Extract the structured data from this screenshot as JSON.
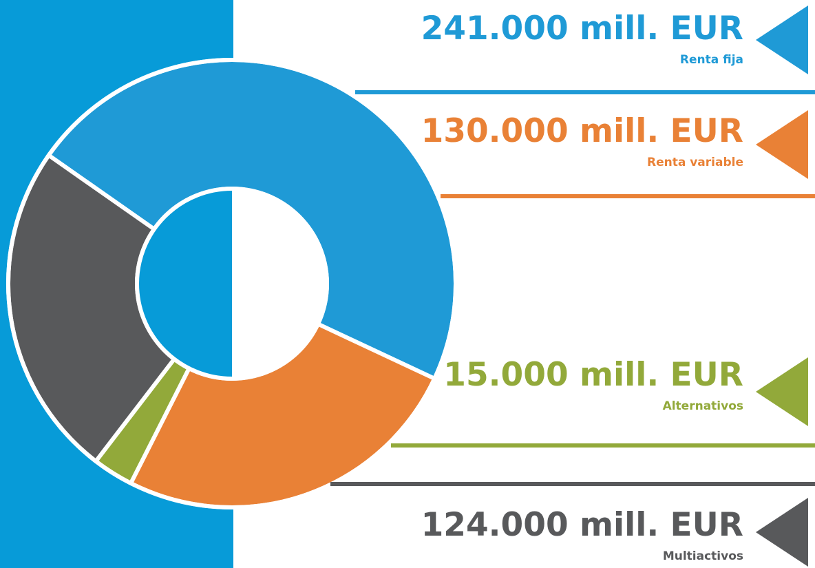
{
  "chart_data": {
    "type": "donut",
    "unit": "mill. EUR",
    "segments": [
      {
        "name": "Renta fija",
        "value": 241000,
        "amount_label": "241.000 mill. EUR",
        "color": "#1f9ad6"
      },
      {
        "name": "Renta variable",
        "value": 130000,
        "amount_label": "130.000 mill. EUR",
        "color": "#e98136"
      },
      {
        "name": "Alternativos",
        "value": 15000,
        "amount_label": "15.000 mill. EUR",
        "color": "#92a93a"
      },
      {
        "name": "Multiactivos",
        "value": 124000,
        "amount_label": "124.000 mill. EUR",
        "color": "#58595b"
      }
    ]
  },
  "colors": {
    "side_panel": "#079bd8",
    "hole_right": "#ffffff",
    "separator": "#ffffff"
  }
}
